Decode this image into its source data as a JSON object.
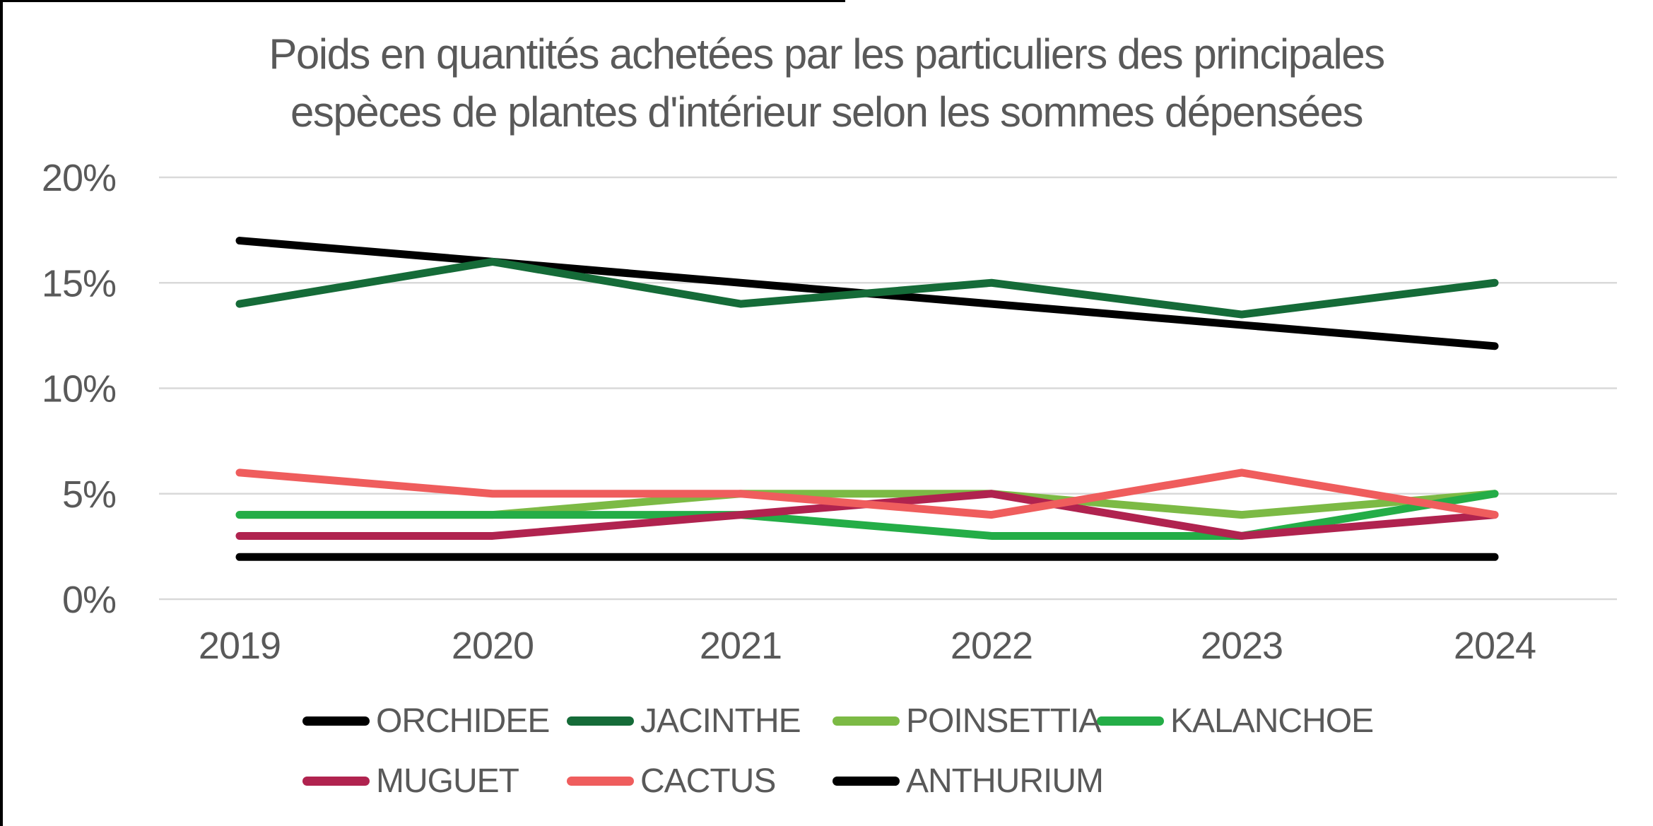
{
  "window": {
    "border_color": "#000000"
  },
  "chart_data": {
    "type": "line",
    "title": "Poids en quantités achetées par les particuliers des principales espèces de plantes d'intérieur selon les sommes dépensées",
    "title_lines": [
      "Poids en quantités achetées par les particuliers des principales",
      "espèces de plantes d'intérieur selon les sommes dépensées"
    ],
    "categories": [
      "2019",
      "2020",
      "2021",
      "2022",
      "2023",
      "2024"
    ],
    "y_ticks": [
      "20%",
      "15%",
      "10%",
      "5%",
      "0%"
    ],
    "y_tick_values": [
      20,
      15,
      10,
      5,
      0
    ],
    "ylim": [
      0,
      20
    ],
    "grid": true,
    "legend_position": "bottom",
    "text_color": "#595959",
    "grid_color": "#d9d9d9",
    "series": [
      {
        "name": "ORCHIDEE",
        "color": "#000000",
        "values": [
          17,
          16,
          15,
          14,
          13,
          12
        ]
      },
      {
        "name": "JACINTHE",
        "color": "#156b38",
        "values": [
          14,
          16,
          14,
          15,
          13.5,
          15
        ]
      },
      {
        "name": "POINSETTIA",
        "color": "#7cba45",
        "values": [
          4,
          4,
          5,
          5,
          4,
          5
        ]
      },
      {
        "name": "KALANCHOE",
        "color": "#24ad47",
        "values": [
          4,
          4,
          4,
          3,
          3,
          5
        ]
      },
      {
        "name": "MUGUET",
        "color": "#b0234f",
        "values": [
          3,
          3,
          4,
          5,
          3,
          4
        ]
      },
      {
        "name": "CACTUS",
        "color": "#ef5d5d",
        "values": [
          6,
          5,
          5,
          4,
          6,
          4
        ]
      },
      {
        "name": "ANTHURIUM",
        "color": "#000000",
        "values": [
          2,
          2,
          2,
          2,
          2,
          2
        ]
      }
    ]
  }
}
